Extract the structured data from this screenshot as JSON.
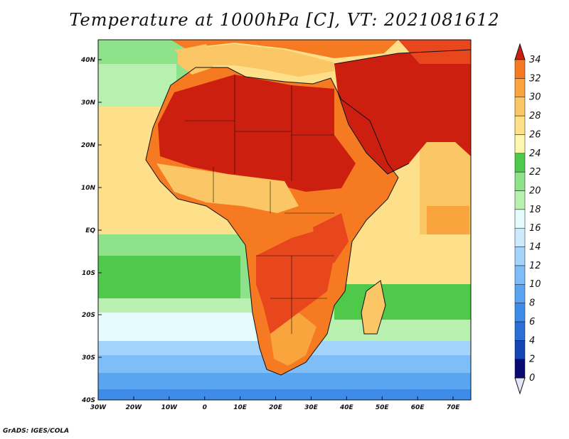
{
  "title": "Temperature at 1000hPa [C], VT: 2021081612",
  "credit": "GrADS: IGES/COLA",
  "map": {
    "lon_labels": [
      "30W",
      "20W",
      "10W",
      "0",
      "10E",
      "20E",
      "30E",
      "40E",
      "50E",
      "60E",
      "70E"
    ],
    "lat_labels": [
      "40N",
      "30N",
      "20N",
      "10N",
      "EQ",
      "10S",
      "20S",
      "30S",
      "40S"
    ],
    "region": "Africa",
    "extent": {
      "lon": [
        -30,
        75
      ],
      "lat": [
        -40,
        44
      ]
    }
  },
  "colorbar": {
    "labels": [
      "0",
      "2",
      "4",
      "6",
      "8",
      "10",
      "12",
      "14",
      "16",
      "18",
      "20",
      "22",
      "24",
      "26",
      "28",
      "30",
      "32",
      "34"
    ],
    "colors": [
      "#0a0a70",
      "#1446b4",
      "#2a6fd6",
      "#3c8ce8",
      "#5aa5f0",
      "#7ebdf7",
      "#a5d4fb",
      "#cdeafd",
      "#e6fbfd",
      "#b8f0b0",
      "#8ee28a",
      "#4fc94a",
      "#fff6b0",
      "#fde089",
      "#fbc665",
      "#f9a43c",
      "#f57a22",
      "#e8461c",
      "#cc1f10"
    ]
  },
  "colors": {
    "ocean_cool": "#4a8ee0",
    "ocean_pale": "#cdeafd",
    "green": "#4fc94a",
    "yellow": "#fde089",
    "orange": "#f9a43c",
    "red": "#e0321a"
  }
}
